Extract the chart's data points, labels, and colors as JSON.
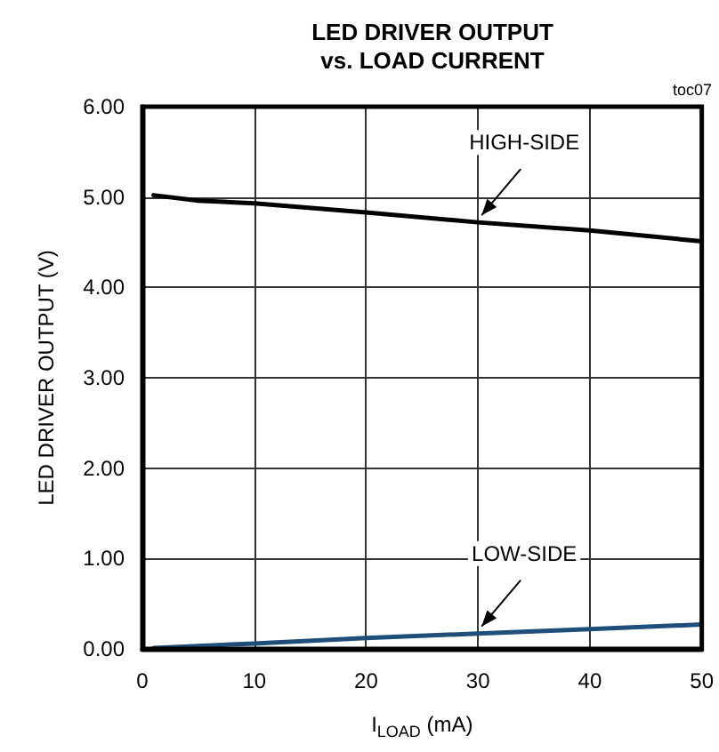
{
  "chart_data": {
    "type": "line",
    "title": "LED DRIVER OUTPUT\nvs. LOAD CURRENT",
    "xlabel": "I$_{LOAD}$ (mA)",
    "ylabel": "LED DRIVER OUTPUT (V)",
    "annotations": [
      "toc07"
    ],
    "xlim": [
      0,
      50
    ],
    "xticks": [
      0,
      10,
      20,
      30,
      40,
      50
    ],
    "ylim": [
      0,
      6
    ],
    "yticks": [
      {
        "value": 0,
        "label": "0.00"
      },
      {
        "value": 1,
        "label": "1.00"
      },
      {
        "value": 2,
        "label": "2.00"
      },
      {
        "value": 3,
        "label": "3.00"
      },
      {
        "value": 4,
        "label": "4.00"
      },
      {
        "value": 5,
        "label": "5.00"
      },
      {
        "value": 6,
        "label": "6.00"
      }
    ],
    "grid": true,
    "legend": false,
    "marker": "none",
    "line_style": "solid",
    "series": [
      {
        "name": "HIGH-SIDE",
        "color": "#000000",
        "x": [
          1,
          5,
          10,
          20,
          30,
          40,
          50
        ],
        "values": [
          5.02,
          4.96,
          4.93,
          4.83,
          4.72,
          4.63,
          4.51
        ]
      },
      {
        "name": "LOW-SIDE",
        "color": "#1f4e79",
        "x": [
          1,
          10,
          20,
          30,
          40,
          50
        ],
        "values": [
          0.01,
          0.06,
          0.12,
          0.17,
          0.22,
          0.27
        ]
      }
    ]
  }
}
